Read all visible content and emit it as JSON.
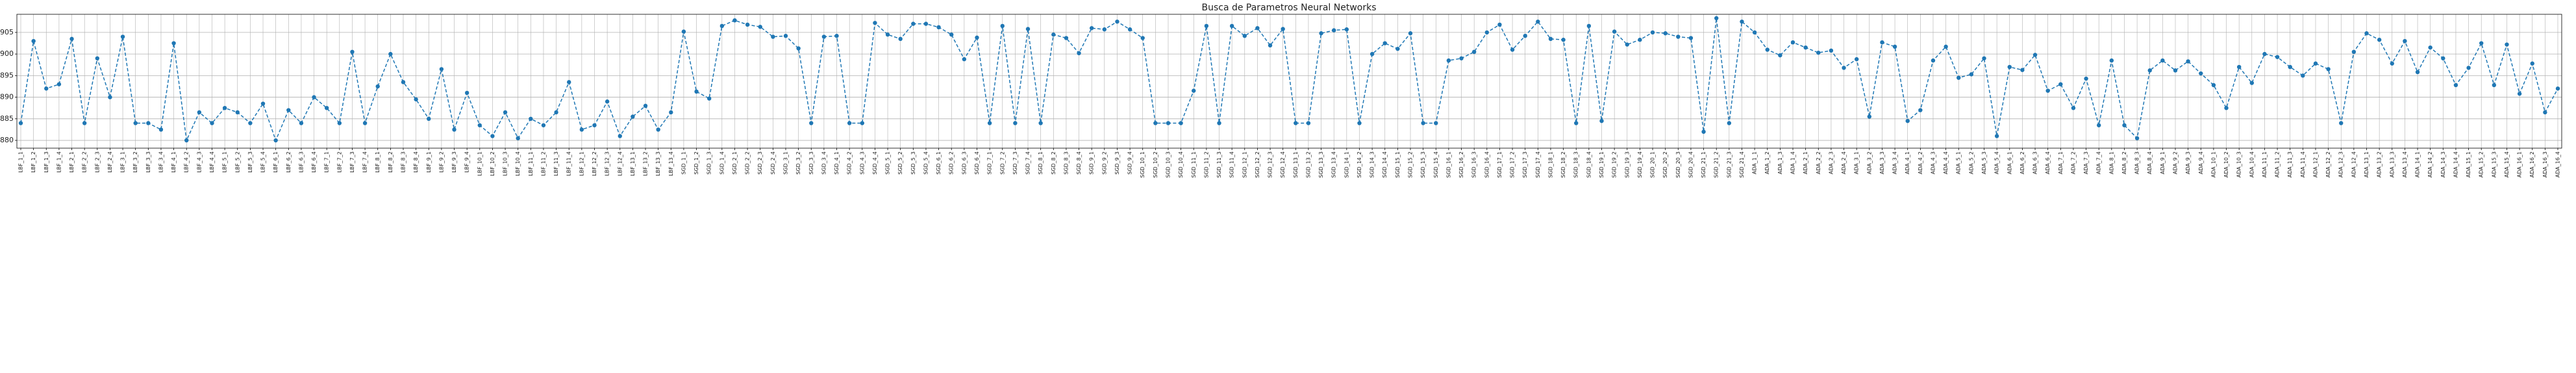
{
  "chart_data": {
    "type": "line",
    "title": "Busca de Parametros Neural Networks",
    "categories": [
      "LBF_1_1",
      "LBF_1_2",
      "LBF_1_3",
      "LBF_1_4",
      "LBF_2_1",
      "LBF_2_2",
      "LBF_2_3",
      "LBF_2_4",
      "LBF_3_1",
      "LBF_3_2",
      "LBF_3_3",
      "LBF_3_4",
      "LBF_4_1",
      "LBF_4_2",
      "LBF_4_3",
      "LBF_4_4",
      "LBF_5_1",
      "LBF_5_2",
      "LBF_5_3",
      "LBF_5_4",
      "LBF_6_1",
      "LBF_6_2",
      "LBF_6_3",
      "LBF_6_4",
      "LBF_7_1",
      "LBF_7_2",
      "LBF_7_3",
      "LBF_7_4",
      "LBF_8_1",
      "LBF_8_2",
      "LBF_8_3",
      "LBF_8_4",
      "LBF_9_1",
      "LBF_9_2",
      "LBF_9_3",
      "LBF_9_4",
      "LBF_10_1",
      "LBF_10_2",
      "LBF_10_3",
      "LBF_10_4",
      "LBF_11_1",
      "LBF_11_2",
      "LBF_11_3",
      "LBF_11_4",
      "LBF_12_1",
      "LBF_12_2",
      "LBF_12_3",
      "LBF_12_4",
      "LBF_13_1",
      "LBF_13_2",
      "LBF_13_3",
      "LBF_13_4",
      "SGD_1_1",
      "SGD_1_2",
      "SGD_1_3",
      "SGD_1_4",
      "SGD_2_1",
      "SGD_2_2",
      "SGD_2_3",
      "SGD_2_4",
      "SGD_3_1",
      "SGD_3_2",
      "SGD_3_3",
      "SGD_3_4",
      "SGD_4_1",
      "SGD_4_2",
      "SGD_4_3",
      "SGD_4_4",
      "SGD_5_1",
      "SGD_5_2",
      "SGD_5_3",
      "SGD_5_4",
      "SGD_6_1",
      "SGD_6_2",
      "SGD_6_3",
      "SGD_6_4",
      "SGD_7_1",
      "SGD_7_2",
      "SGD_7_3",
      "SGD_7_4",
      "SGD_8_1",
      "SGD_8_2",
      "SGD_8_3",
      "SGD_8_4",
      "SGD_9_1",
      "SGD_9_2",
      "SGD_9_3",
      "SGD_9_4",
      "SGD_10_1",
      "SGD_10_2",
      "SGD_10_3",
      "SGD_10_4",
      "SGD_11_1",
      "SGD_11_2",
      "SGD_11_3",
      "SGD_11_4",
      "SGD_12_1",
      "SGD_12_2",
      "SGD_12_3",
      "SGD_12_4",
      "SGD_13_1",
      "SGD_13_2",
      "SGD_13_3",
      "SGD_13_4",
      "SGD_14_1",
      "SGD_14_2",
      "SGD_14_3",
      "SGD_14_4",
      "SGD_15_1",
      "SGD_15_2",
      "SGD_15_3",
      "SGD_15_4",
      "SGD_16_1",
      "SGD_16_2",
      "SGD_16_3",
      "SGD_16_4",
      "SGD_17_1",
      "SGD_17_2",
      "SGD_17_3",
      "SGD_17_4",
      "SGD_18_1",
      "SGD_18_2",
      "SGD_18_3",
      "SGD_18_4",
      "SGD_19_1",
      "SGD_19_2",
      "SGD_19_3",
      "SGD_19_4",
      "SGD_20_1",
      "SGD_20_2",
      "SGD_20_3",
      "SGD_20_4",
      "SGD_21_1",
      "SGD_21_2",
      "SGD_21_3",
      "SGD_21_4",
      "ADA_1_1",
      "ADA_1_2",
      "ADA_1_3",
      "ADA_1_4",
      "ADA_2_1",
      "ADA_2_2",
      "ADA_2_3",
      "ADA_2_4",
      "ADA_3_1",
      "ADA_3_2",
      "ADA_3_3",
      "ADA_3_4",
      "ADA_4_1",
      "ADA_4_2",
      "ADA_4_3",
      "ADA_4_4",
      "ADA_5_1",
      "ADA_5_2",
      "ADA_5_3",
      "ADA_5_4",
      "ADA_6_1",
      "ADA_6_2",
      "ADA_6_3",
      "ADA_6_4",
      "ADA_7_1",
      "ADA_7_2",
      "ADA_7_3",
      "ADA_7_4",
      "ADA_8_1",
      "ADA_8_2",
      "ADA_8_3",
      "ADA_8_4",
      "ADA_9_1",
      "ADA_9_2",
      "ADA_9_3",
      "ADA_9_4",
      "ADA_10_1",
      "ADA_10_2",
      "ADA_10_3",
      "ADA_10_4",
      "ADA_11_1",
      "ADA_11_2",
      "ADA_11_3",
      "ADA_11_4",
      "ADA_12_1",
      "ADA_12_2",
      "ADA_12_3",
      "ADA_12_4",
      "ADA_13_1",
      "ADA_13_2",
      "ADA_13_3",
      "ADA_13_4",
      "ADA_14_1",
      "ADA_14_2",
      "ADA_14_3",
      "ADA_14_4",
      "ADA_15_1",
      "ADA_15_2",
      "ADA_15_3",
      "ADA_15_4",
      "ADA_16_1",
      "ADA_16_2",
      "ADA_16_3",
      "ADA_16_4"
    ],
    "values": [
      0.884,
      0.903,
      0.892,
      0.893,
      0.9035,
      0.884,
      0.899,
      0.89,
      0.904,
      0.884,
      0.884,
      0.8825,
      0.9025,
      0.88,
      0.8865,
      0.884,
      0.8875,
      0.8865,
      0.884,
      0.8885,
      0.88,
      0.887,
      0.884,
      0.89,
      0.8875,
      0.884,
      0.9005,
      0.884,
      0.8925,
      0.9,
      0.8935,
      0.8895,
      0.885,
      0.8965,
      0.8825,
      0.891,
      0.8835,
      0.881,
      0.8865,
      0.8805,
      0.885,
      0.8835,
      0.8865,
      0.8935,
      0.8825,
      0.8835,
      0.889,
      0.881,
      0.8855,
      0.888,
      0.8825,
      0.8865,
      0.9052,
      0.8913,
      0.8897,
      0.9065,
      0.9078,
      0.9068,
      0.9063,
      0.904,
      0.9042,
      0.9013,
      0.884,
      0.904,
      0.9042,
      0.884,
      0.884,
      0.9072,
      0.9045,
      0.9035,
      0.907,
      0.907,
      0.9062,
      0.9045,
      0.8988,
      0.9038,
      0.884,
      0.9065,
      0.884,
      0.9058,
      0.884,
      0.9045,
      0.9037,
      0.9002,
      0.906,
      0.9057,
      0.9075,
      0.9057,
      0.9037,
      0.884,
      0.884,
      0.884,
      0.8915,
      0.9065,
      0.884,
      0.9065,
      0.9042,
      0.906,
      0.902,
      0.9058,
      0.884,
      0.884,
      0.9048,
      0.9055,
      0.9057,
      0.884,
      0.9,
      0.9025,
      0.9012,
      0.9048,
      0.884,
      0.884,
      0.8985,
      0.899,
      0.9005,
      0.905,
      0.9068,
      0.901,
      0.9042,
      0.9075,
      0.9035,
      0.9033,
      0.884,
      0.9065,
      0.8845,
      0.9052,
      0.9022,
      0.9033,
      0.905,
      0.9048,
      0.904,
      0.9037,
      0.882,
      0.9083,
      0.884,
      0.9075,
      0.905,
      0.901,
      0.8997,
      0.9027,
      0.9015,
      0.9003,
      0.9008,
      0.8968,
      0.8988,
      0.8855,
      0.9027,
      0.9017,
      0.8845,
      0.887,
      0.8985,
      0.9017,
      0.8945,
      0.8953,
      0.899,
      0.881,
      0.897,
      0.8963,
      0.8998,
      0.8915,
      0.893,
      0.8875,
      0.8943,
      0.8835,
      0.8985,
      0.8835,
      0.8805,
      0.8962,
      0.8985,
      0.8962,
      0.8983,
      0.8955,
      0.8928,
      0.8875,
      0.897,
      0.8933,
      0.9,
      0.8993,
      0.897,
      0.895,
      0.8978,
      0.8965,
      0.884,
      0.9005,
      0.9048,
      0.9033,
      0.8978,
      0.903,
      0.8958,
      0.9015,
      0.899,
      0.8928,
      0.8968,
      0.9025,
      0.8928,
      0.9022,
      0.8908,
      0.8978,
      0.8865,
      0.892
    ],
    "color": "#1f77b4",
    "ylim": [
      0.8782,
      0.9092
    ],
    "yticks": [
      {
        "value": 0.88,
        "label": "0.880"
      },
      {
        "value": 0.885,
        "label": "0.885"
      },
      {
        "value": 0.89,
        "label": "0.890"
      },
      {
        "value": 0.895,
        "label": "0.895"
      },
      {
        "value": 0.9,
        "label": "0.900"
      },
      {
        "value": 0.905,
        "label": "0.905"
      }
    ],
    "grid": true,
    "line_style": "dashed",
    "marker": "circle"
  }
}
